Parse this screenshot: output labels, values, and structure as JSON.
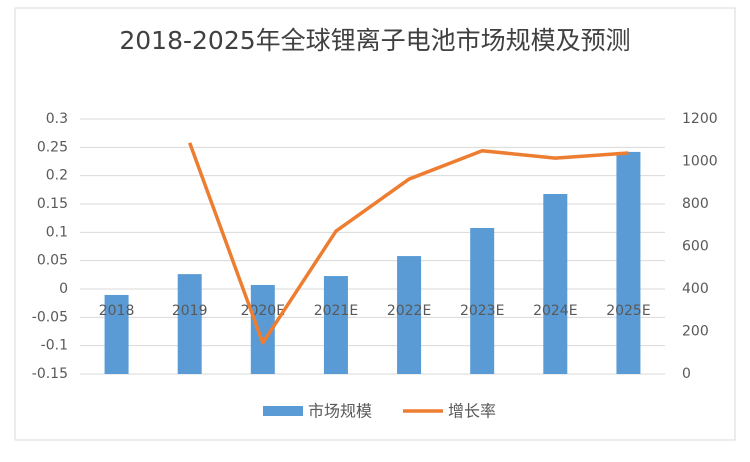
{
  "chart_data": {
    "type": "bar-line",
    "title": "2018-2025年全球锂离子电池市场规模及预测",
    "categories": [
      "2018",
      "2019",
      "2020E",
      "2021E",
      "2022E",
      "2023E",
      "2024E",
      "2025E"
    ],
    "series": [
      {
        "name": "市场规模",
        "type": "bar",
        "axis": "y2",
        "color": "#5b9bd5",
        "values": [
          372,
          470,
          419,
          461,
          555,
          687,
          847,
          1045
        ]
      },
      {
        "name": "增长率",
        "type": "line",
        "axis": "y",
        "color": "#ed7d31",
        "values": [
          null,
          0.258,
          -0.095,
          0.102,
          0.194,
          0.244,
          0.231,
          0.24
        ]
      }
    ],
    "ylim": [
      -0.15,
      0.3
    ],
    "yticks": [
      -0.15,
      -0.1,
      -0.05,
      0,
      0.05,
      0.1,
      0.15,
      0.2,
      0.25,
      0.3
    ],
    "y2lim": [
      0,
      1200
    ],
    "y2ticks": [
      0,
      200,
      400,
      600,
      800,
      1000,
      1200
    ],
    "grid": true,
    "legend": "bottom"
  }
}
